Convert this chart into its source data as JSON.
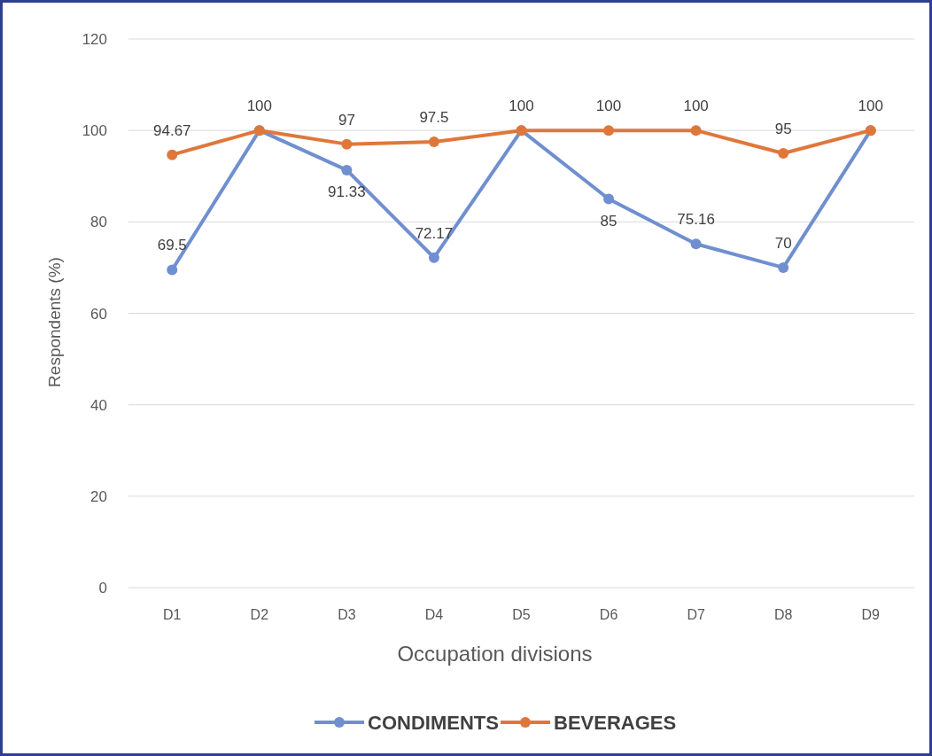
{
  "chart_data": {
    "type": "line",
    "xlabel": "Occupation divisions",
    "ylabel": "Respondents (%)",
    "categories": [
      "D1",
      "D2",
      "D3",
      "D4",
      "D5",
      "D6",
      "D7",
      "D8",
      "D9"
    ],
    "series": [
      {
        "name": "CONDIMENTS",
        "color": "#6f8fd0",
        "values": [
          69.5,
          100,
          91.33,
          72.17,
          100,
          85,
          75.16,
          70,
          100
        ],
        "value_labels": [
          "69.5",
          null,
          "91.33",
          "72.17",
          null,
          "85",
          "75.16",
          "70",
          null
        ]
      },
      {
        "name": "BEVERAGES",
        "color": "#e0773a",
        "values": [
          94.67,
          100,
          97,
          97.5,
          100,
          100,
          100,
          95,
          100
        ],
        "value_labels": [
          "94.67",
          "100",
          "97",
          "97.5",
          "100",
          "100",
          "100",
          "95",
          "100"
        ]
      }
    ],
    "ylim": [
      0,
      120
    ],
    "yticks": [
      0,
      20,
      40,
      60,
      80,
      100,
      120
    ],
    "grid": "y",
    "legend": "bottom",
    "marker": "circle",
    "line_style": "solid"
  }
}
